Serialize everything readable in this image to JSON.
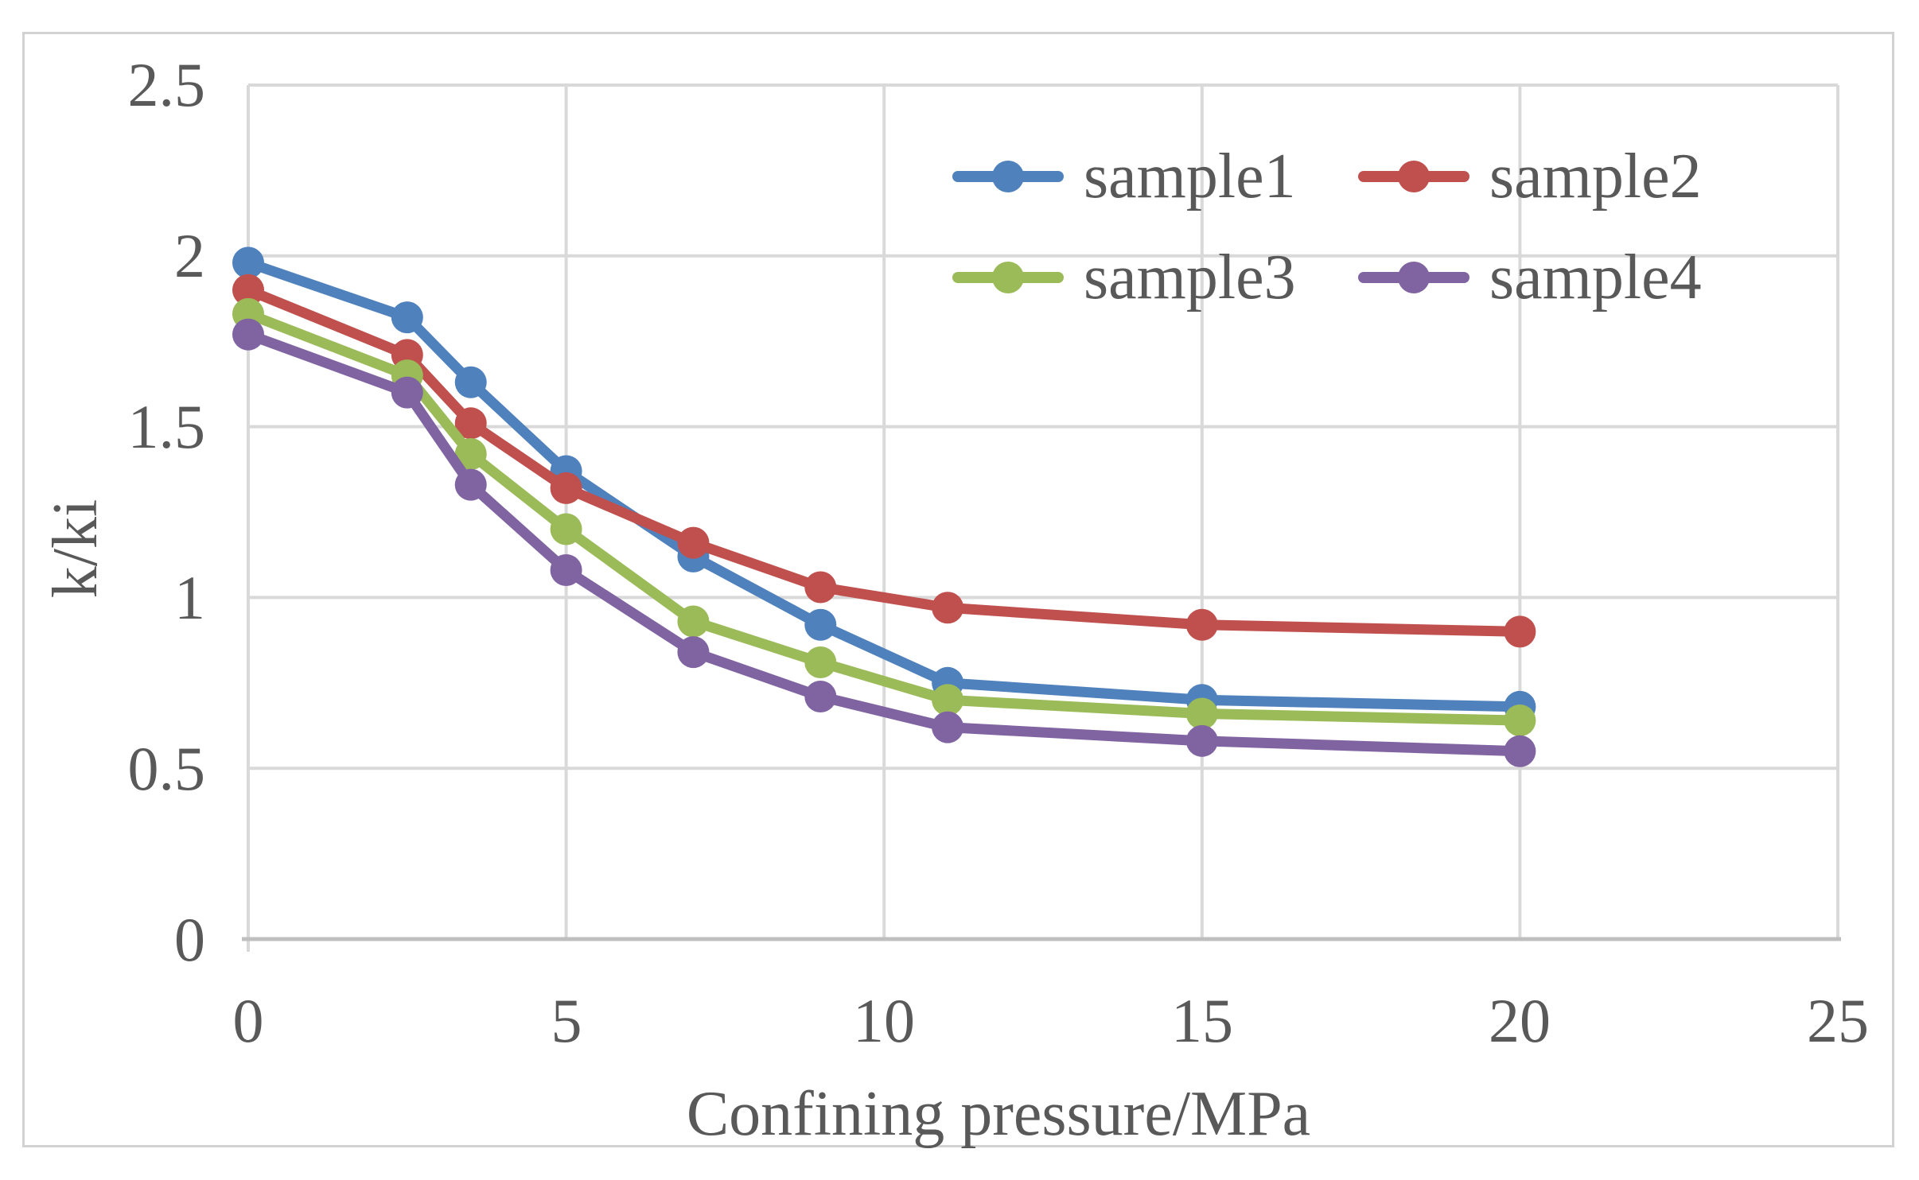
{
  "chart_data": {
    "type": "line",
    "title": "",
    "xlabel": "Confining pressure/MPa",
    "ylabel": "k/ki",
    "x": [
      0,
      2.5,
      3.5,
      5,
      7,
      9,
      11,
      15,
      20
    ],
    "series": [
      {
        "name": "sample1",
        "color": "#4F81BD",
        "values": [
          1.98,
          1.82,
          1.63,
          1.37,
          1.12,
          0.92,
          0.75,
          0.7,
          0.68
        ]
      },
      {
        "name": "sample2",
        "color": "#C0504D",
        "values": [
          1.9,
          1.71,
          1.51,
          1.32,
          1.16,
          1.03,
          0.97,
          0.92,
          0.9
        ]
      },
      {
        "name": "sample3",
        "color": "#9BBB59",
        "values": [
          1.83,
          1.65,
          1.42,
          1.2,
          0.93,
          0.81,
          0.7,
          0.66,
          0.64
        ]
      },
      {
        "name": "sample4",
        "color": "#8064A2",
        "values": [
          1.77,
          1.6,
          1.33,
          1.08,
          0.84,
          0.71,
          0.62,
          0.58,
          0.55
        ]
      }
    ],
    "xlim": [
      0,
      25
    ],
    "ylim": [
      0,
      2.5
    ],
    "xtick_values": [
      0,
      5,
      10,
      15,
      20,
      25
    ],
    "xtick_labels": [
      "0",
      "5",
      "10",
      "15",
      "20",
      "25"
    ],
    "ytick_values": [
      0,
      0.5,
      1,
      1.5,
      2,
      2.5
    ],
    "ytick_labels": [
      "0",
      "0.5",
      "1",
      "1.5",
      "2",
      "2.5"
    ],
    "grid": true,
    "legend_position": "inside-top-right",
    "marker": "circle",
    "colors": {
      "gridline": "#D9D9D9",
      "axis_line": "#BFBFBF",
      "text": "#595959",
      "figure_border": "#D2D2D2"
    }
  }
}
